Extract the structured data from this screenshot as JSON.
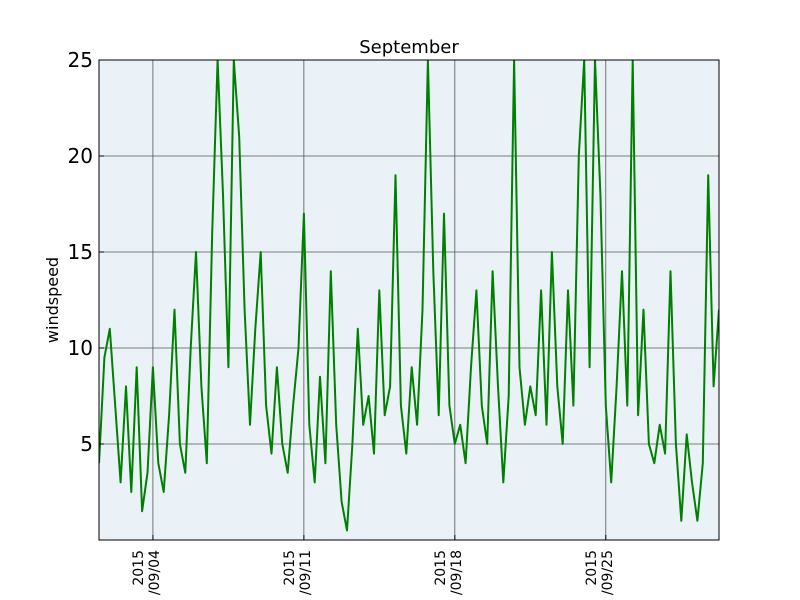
{
  "chart_data": {
    "type": "line",
    "title": "September",
    "xlabel": "",
    "ylabel": "windspeed",
    "ylim": [
      0,
      25
    ],
    "y_ticks": [
      5,
      10,
      15,
      20,
      25
    ],
    "x_range": [
      "2015-09-01T12:00",
      "2015-09-30T06:00"
    ],
    "x_ticks": [
      {
        "date": "2015-09-04",
        "label_line1": "2015",
        "label_line2": "/09/04"
      },
      {
        "date": "2015-09-11",
        "label_line1": "2015",
        "label_line2": "/09/11"
      },
      {
        "date": "2015-09-18",
        "label_line1": "2015",
        "label_line2": "/09/18"
      },
      {
        "date": "2015-09-25",
        "label_line1": "2015",
        "label_line2": "/09/25"
      }
    ],
    "grid": true,
    "background_color": "#eaf2f8",
    "series": [
      {
        "color": "#008000",
        "points": [
          [
            "2015-09-01T12:00",
            4.0
          ],
          [
            "2015-09-01T18:00",
            9.5
          ],
          [
            "2015-09-02T00:00",
            11.0
          ],
          [
            "2015-09-02T06:00",
            7.0
          ],
          [
            "2015-09-02T12:00",
            3.0
          ],
          [
            "2015-09-02T18:00",
            8.0
          ],
          [
            "2015-09-03T00:00",
            2.5
          ],
          [
            "2015-09-03T06:00",
            9.0
          ],
          [
            "2015-09-03T12:00",
            1.5
          ],
          [
            "2015-09-03T18:00",
            3.5
          ],
          [
            "2015-09-04T00:00",
            9.0
          ],
          [
            "2015-09-04T06:00",
            4.0
          ],
          [
            "2015-09-04T12:00",
            2.5
          ],
          [
            "2015-09-04T18:00",
            6.5
          ],
          [
            "2015-09-05T00:00",
            12.0
          ],
          [
            "2015-09-05T06:00",
            5.0
          ],
          [
            "2015-09-05T12:00",
            3.5
          ],
          [
            "2015-09-05T18:00",
            10.0
          ],
          [
            "2015-09-06T00:00",
            15.0
          ],
          [
            "2015-09-06T06:00",
            8.0
          ],
          [
            "2015-09-06T12:00",
            4.0
          ],
          [
            "2015-09-06T18:00",
            16.0
          ],
          [
            "2015-09-07T00:00",
            25.0
          ],
          [
            "2015-09-07T06:00",
            18.0
          ],
          [
            "2015-09-07T12:00",
            9.0
          ],
          [
            "2015-09-07T18:00",
            25.0
          ],
          [
            "2015-09-08T00:00",
            21.0
          ],
          [
            "2015-09-08T06:00",
            12.0
          ],
          [
            "2015-09-08T12:00",
            6.0
          ],
          [
            "2015-09-08T18:00",
            11.0
          ],
          [
            "2015-09-09T00:00",
            15.0
          ],
          [
            "2015-09-09T06:00",
            7.0
          ],
          [
            "2015-09-09T12:00",
            4.5
          ],
          [
            "2015-09-09T18:00",
            9.0
          ],
          [
            "2015-09-10T00:00",
            5.0
          ],
          [
            "2015-09-10T06:00",
            3.5
          ],
          [
            "2015-09-10T12:00",
            7.0
          ],
          [
            "2015-09-10T18:00",
            10.0
          ],
          [
            "2015-09-11T00:00",
            17.0
          ],
          [
            "2015-09-11T06:00",
            6.0
          ],
          [
            "2015-09-11T12:00",
            3.0
          ],
          [
            "2015-09-11T18:00",
            8.5
          ],
          [
            "2015-09-12T00:00",
            4.0
          ],
          [
            "2015-09-12T06:00",
            14.0
          ],
          [
            "2015-09-12T12:00",
            6.0
          ],
          [
            "2015-09-12T18:00",
            2.0
          ],
          [
            "2015-09-13T00:00",
            0.5
          ],
          [
            "2015-09-13T06:00",
            5.0
          ],
          [
            "2015-09-13T12:00",
            11.0
          ],
          [
            "2015-09-13T18:00",
            6.0
          ],
          [
            "2015-09-14T00:00",
            7.5
          ],
          [
            "2015-09-14T06:00",
            4.5
          ],
          [
            "2015-09-14T12:00",
            13.0
          ],
          [
            "2015-09-14T18:00",
            6.5
          ],
          [
            "2015-09-15T00:00",
            8.0
          ],
          [
            "2015-09-15T06:00",
            19.0
          ],
          [
            "2015-09-15T12:00",
            7.0
          ],
          [
            "2015-09-15T18:00",
            4.5
          ],
          [
            "2015-09-16T00:00",
            9.0
          ],
          [
            "2015-09-16T06:00",
            6.0
          ],
          [
            "2015-09-16T12:00",
            12.0
          ],
          [
            "2015-09-16T18:00",
            25.0
          ],
          [
            "2015-09-17T00:00",
            14.0
          ],
          [
            "2015-09-17T06:00",
            6.5
          ],
          [
            "2015-09-17T12:00",
            17.0
          ],
          [
            "2015-09-17T18:00",
            7.0
          ],
          [
            "2015-09-18T00:00",
            5.0
          ],
          [
            "2015-09-18T06:00",
            6.0
          ],
          [
            "2015-09-18T12:00",
            4.0
          ],
          [
            "2015-09-18T18:00",
            9.0
          ],
          [
            "2015-09-19T00:00",
            13.0
          ],
          [
            "2015-09-19T06:00",
            7.0
          ],
          [
            "2015-09-19T12:00",
            5.0
          ],
          [
            "2015-09-19T18:00",
            14.0
          ],
          [
            "2015-09-20T00:00",
            8.0
          ],
          [
            "2015-09-20T06:00",
            3.0
          ],
          [
            "2015-09-20T12:00",
            7.5
          ],
          [
            "2015-09-20T18:00",
            25.0
          ],
          [
            "2015-09-21T00:00",
            9.0
          ],
          [
            "2015-09-21T06:00",
            6.0
          ],
          [
            "2015-09-21T12:00",
            8.0
          ],
          [
            "2015-09-21T18:00",
            6.5
          ],
          [
            "2015-09-22T00:00",
            13.0
          ],
          [
            "2015-09-22T06:00",
            6.0
          ],
          [
            "2015-09-22T12:00",
            15.0
          ],
          [
            "2015-09-22T18:00",
            8.0
          ],
          [
            "2015-09-23T00:00",
            5.0
          ],
          [
            "2015-09-23T06:00",
            13.0
          ],
          [
            "2015-09-23T12:00",
            7.0
          ],
          [
            "2015-09-23T18:00",
            20.0
          ],
          [
            "2015-09-24T00:00",
            25.0
          ],
          [
            "2015-09-24T06:00",
            9.0
          ],
          [
            "2015-09-24T12:00",
            25.0
          ],
          [
            "2015-09-24T18:00",
            18.0
          ],
          [
            "2015-09-25T00:00",
            7.0
          ],
          [
            "2015-09-25T06:00",
            3.0
          ],
          [
            "2015-09-25T12:00",
            8.0
          ],
          [
            "2015-09-25T18:00",
            14.0
          ],
          [
            "2015-09-26T00:00",
            7.0
          ],
          [
            "2015-09-26T06:00",
            25.0
          ],
          [
            "2015-09-26T12:00",
            6.5
          ],
          [
            "2015-09-26T18:00",
            12.0
          ],
          [
            "2015-09-27T00:00",
            5.0
          ],
          [
            "2015-09-27T06:00",
            4.0
          ],
          [
            "2015-09-27T12:00",
            6.0
          ],
          [
            "2015-09-27T18:00",
            4.5
          ],
          [
            "2015-09-28T00:00",
            14.0
          ],
          [
            "2015-09-28T06:00",
            5.0
          ],
          [
            "2015-09-28T12:00",
            1.0
          ],
          [
            "2015-09-28T18:00",
            5.5
          ],
          [
            "2015-09-29T00:00",
            3.0
          ],
          [
            "2015-09-29T06:00",
            1.0
          ],
          [
            "2015-09-29T12:00",
            4.0
          ],
          [
            "2015-09-29T18:00",
            19.0
          ],
          [
            "2015-09-30T00:00",
            8.0
          ],
          [
            "2015-09-30T06:00",
            12.0
          ]
        ]
      }
    ]
  }
}
